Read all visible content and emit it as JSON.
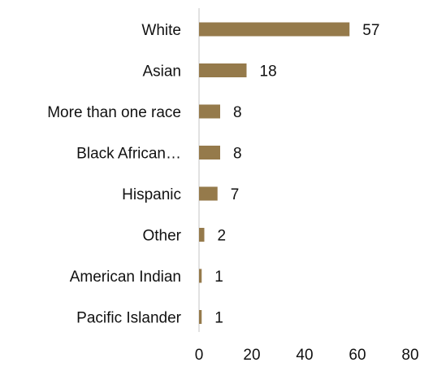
{
  "chart_data": {
    "type": "bar",
    "orientation": "horizontal",
    "categories": [
      "White",
      "Asian",
      "More than one race",
      "Black African…",
      "Hispanic",
      "Other",
      "American Indian",
      "Pacific Islander"
    ],
    "values": [
      57,
      18,
      8,
      8,
      7,
      2,
      1,
      1
    ],
    "data_labels": [
      "57",
      "18",
      "8",
      "8",
      "7",
      "2",
      "1",
      "1"
    ],
    "xlim": [
      0,
      80
    ],
    "x_ticks": [
      0,
      20,
      40,
      60,
      80
    ],
    "x_tick_labels": [
      "0",
      "20",
      "40",
      "60",
      "80"
    ],
    "grid": false,
    "legend": "none",
    "bar_color": "#957A4B",
    "axis_color": "#D9D9D9"
  }
}
